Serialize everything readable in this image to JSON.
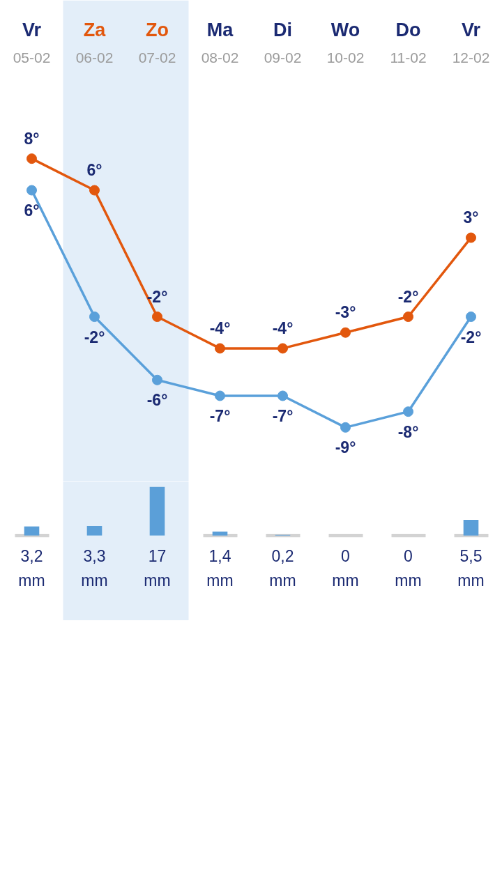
{
  "chart_data": [
    {
      "type": "line",
      "categories": [
        "Vr\n05-02",
        "Za\n06-02",
        "Zo\n07-02",
        "Ma\n08-02",
        "Di\n09-02",
        "Wo\n10-02",
        "Do\n11-02",
        "Vr\n12-02"
      ],
      "series": [
        {
          "color": "#e2570d",
          "values": [
            8,
            6,
            -2,
            -4,
            -4,
            -3,
            -2,
            3
          ],
          "value_labels": [
            "8°",
            "6°",
            "-2°",
            "-4°",
            "-4°",
            "-3°",
            "-2°",
            "3°"
          ]
        },
        {
          "color": "#5aa0da",
          "values": [
            6,
            -2,
            -6,
            -7,
            -7,
            -9,
            -8,
            -2
          ],
          "value_labels": [
            "6°",
            "-2°",
            "-6°",
            "-7°",
            "-7°",
            "-9°",
            "-8°",
            "-2°"
          ]
        }
      ],
      "bands": [
        {
          "axis": "x",
          "from": "Za\n06-02",
          "to": "Zo\n07-02",
          "color": "#e3eef9"
        }
      ],
      "marker": "circle",
      "line_style": "solid",
      "tick_labels": "x"
    },
    {
      "type": "bar",
      "categories": [
        "Vr\n05-02",
        "Za\n06-02",
        "Zo\n07-02",
        "Ma\n08-02",
        "Di\n09-02",
        "Wo\n10-02",
        "Do\n11-02",
        "Vr\n12-02"
      ],
      "series": [
        {
          "color": "#5b9fd8",
          "values": [
            3.2,
            3.3,
            17,
            1.4,
            0.2,
            0,
            0,
            5.5
          ],
          "value_labels": [
            "3,2\nmm",
            "3,3\nmm",
            "17\nmm",
            "1,4\nmm",
            "0,2\nmm",
            "0\nmm",
            "0\nmm",
            "5,5\nmm"
          ]
        }
      ],
      "bands": [
        {
          "axis": "x",
          "from": "Za\n06-02",
          "to": "Zo\n07-02",
          "color": "#e3eef9"
        }
      ],
      "tick_labels": false
    }
  ]
}
